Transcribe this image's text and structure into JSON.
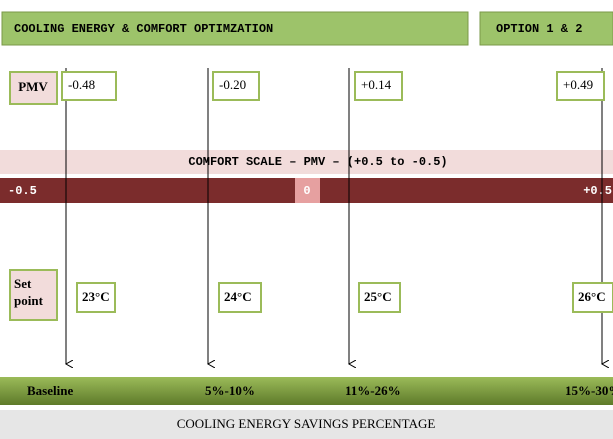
{
  "header": {
    "title": "COOLING ENERGY & COMFORT OPTIMZATION",
    "option": "OPTION 1 & 2"
  },
  "pmv": {
    "label": "PMV",
    "values": [
      "-0.48",
      "-0.20",
      "+0.14",
      "+0.49"
    ]
  },
  "comfort_scale": {
    "title": "COMFORT SCALE – PMV – (+0.5 to -0.5)",
    "left": "-0.5",
    "center": "0",
    "right": "+0.5"
  },
  "setpoint": {
    "label": "Set point",
    "values": [
      "23°C",
      "24°C",
      "25°C",
      "26°C"
    ]
  },
  "savings": {
    "values": [
      "Baseline",
      "5%-10%",
      "11%-26%",
      "15%-30%"
    ],
    "title": "COOLING ENERGY SAVINGS PERCENTAGE"
  }
}
